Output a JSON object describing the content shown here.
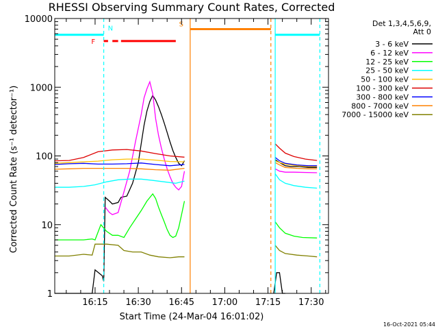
{
  "chart_data": {
    "type": "line",
    "title": "RHESSI Observing Summary Count Rates, Corrected",
    "xlabel": "Start Time (24-Mar-04 16:01:02)",
    "ylabel": "Corrected Count Rate (s⁻¹ detector⁻¹)",
    "x_ticks": [
      "16:15",
      "16:30",
      "16:45",
      "17:00",
      "17:15",
      "17:30"
    ],
    "x_tick_minutes": [
      14,
      29,
      44,
      59,
      74,
      89
    ],
    "xlim_minutes": [
      0,
      95
    ],
    "ylim": [
      1,
      10000
    ],
    "yscale": "log",
    "y_ticks": [
      "1",
      "10",
      "100",
      "1000",
      "10000"
    ],
    "y_tick_values": [
      1,
      10,
      100,
      1000,
      10000
    ],
    "grid": false,
    "legend_position": "top-right",
    "legend_header": [
      "Det 1,3,4,5,6,9,",
      "Att 0"
    ],
    "footer_stamp": "16-Oct-2021 05:44",
    "series": [
      {
        "name": "3 - 6 keV",
        "color": "#000000",
        "segments": [
          [
            [
              0,
              1
            ],
            [
              13,
              1
            ],
            [
              14,
              2.2
            ],
            [
              16.5,
              1.8
            ],
            [
              17,
              1.5
            ],
            [
              17.5,
              25
            ],
            [
              19,
              22
            ],
            [
              20,
              20
            ],
            [
              22,
              21
            ],
            [
              23,
              25
            ],
            [
              25,
              26
            ],
            [
              27,
              40
            ],
            [
              29,
              80
            ],
            [
              30,
              150
            ],
            [
              31,
              280
            ],
            [
              32,
              450
            ],
            [
              33,
              620
            ],
            [
              34,
              760
            ],
            [
              35,
              650
            ],
            [
              36,
              520
            ],
            [
              37,
              400
            ],
            [
              38,
              300
            ],
            [
              39,
              220
            ],
            [
              40,
              160
            ],
            [
              41,
              120
            ],
            [
              42,
              95
            ],
            [
              43,
              78
            ],
            [
              44,
              72
            ],
            [
              45,
              85
            ]
          ],
          [
            [
              76,
              1
            ],
            [
              77,
              2
            ],
            [
              78,
              2
            ],
            [
              79,
              1
            ],
            [
              80,
              1
            ]
          ],
          [
            [
              76.5,
              88
            ],
            [
              78,
              80
            ],
            [
              80,
              72
            ],
            [
              82,
              70
            ],
            [
              85,
              70
            ],
            [
              88,
              68
            ],
            [
              91,
              68
            ]
          ]
        ]
      },
      {
        "name": "6 - 12 keV",
        "color": "#ff00ff",
        "segments": [
          [
            [
              17.5,
              18
            ],
            [
              19,
              15
            ],
            [
              20,
              14
            ],
            [
              22,
              15
            ],
            [
              24,
              30
            ],
            [
              26,
              60
            ],
            [
              28,
              160
            ],
            [
              30,
              400
            ],
            [
              31,
              700
            ],
            [
              32,
              950
            ],
            [
              33,
              1200
            ],
            [
              34,
              800
            ],
            [
              35,
              350
            ],
            [
              36,
              200
            ],
            [
              37,
              130
            ],
            [
              38,
              90
            ],
            [
              39,
              65
            ],
            [
              40,
              50
            ],
            [
              41,
              40
            ],
            [
              42,
              35
            ],
            [
              43,
              32
            ],
            [
              44,
              36
            ],
            [
              45,
              60
            ]
          ],
          [
            [
              76.5,
              65
            ],
            [
              78,
              60
            ],
            [
              80,
              58
            ],
            [
              83,
              58
            ],
            [
              91,
              57
            ]
          ]
        ]
      },
      {
        "name": "12 - 25 keV",
        "color": "#00ff00",
        "segments": [
          [
            [
              0,
              6
            ],
            [
              10,
              6
            ],
            [
              13,
              6.2
            ],
            [
              14,
              6
            ],
            [
              16,
              10
            ],
            [
              18,
              8
            ],
            [
              20,
              7
            ],
            [
              22,
              7
            ],
            [
              24,
              6.5
            ],
            [
              26,
              9
            ],
            [
              28,
              12
            ],
            [
              30,
              16
            ],
            [
              32,
              22
            ],
            [
              34,
              28
            ],
            [
              35,
              24
            ],
            [
              36,
              18
            ],
            [
              37,
              14
            ],
            [
              38,
              11
            ],
            [
              39,
              8.5
            ],
            [
              40,
              7
            ],
            [
              41,
              6.5
            ],
            [
              42,
              6.8
            ],
            [
              43,
              9
            ],
            [
              44,
              14
            ],
            [
              45,
              22
            ]
          ],
          [
            [
              76.5,
              11
            ],
            [
              78,
              9
            ],
            [
              80,
              7.5
            ],
            [
              83,
              6.8
            ],
            [
              86,
              6.5
            ],
            [
              91,
              6.4
            ]
          ]
        ]
      },
      {
        "name": "25 - 50 keV",
        "color": "#00ffff",
        "segments": [
          [
            [
              0,
              35
            ],
            [
              5,
              35
            ],
            [
              10,
              36
            ],
            [
              14,
              38
            ],
            [
              18,
              42
            ],
            [
              22,
              45
            ],
            [
              26,
              46
            ],
            [
              30,
              46
            ],
            [
              34,
              44
            ],
            [
              38,
              42
            ],
            [
              42,
              40
            ],
            [
              45,
              43
            ]
          ],
          [
            [
              76.5,
              55
            ],
            [
              78,
              45
            ],
            [
              80,
              40
            ],
            [
              83,
              37
            ],
            [
              87,
              35
            ],
            [
              91,
              34
            ]
          ]
        ]
      },
      {
        "name": "50 - 100 keV",
        "color": "#ffbf00",
        "segments": [
          [
            [
              0,
              78
            ],
            [
              5,
              80
            ],
            [
              10,
              82
            ],
            [
              15,
              84
            ],
            [
              20,
              88
            ],
            [
              25,
              90
            ],
            [
              30,
              90
            ],
            [
              35,
              87
            ],
            [
              40,
              83
            ],
            [
              45,
              82
            ]
          ],
          [
            [
              76.5,
              85
            ],
            [
              78,
              80
            ],
            [
              80,
              76
            ],
            [
              84,
              72
            ],
            [
              88,
              70
            ],
            [
              91,
              70
            ]
          ]
        ]
      },
      {
        "name": "100 - 300 keV",
        "color": "#dd0000",
        "segments": [
          [
            [
              0,
              85
            ],
            [
              5,
              86
            ],
            [
              10,
              95
            ],
            [
              15,
              115
            ],
            [
              20,
              122
            ],
            [
              25,
              124
            ],
            [
              30,
              118
            ],
            [
              35,
              108
            ],
            [
              40,
              100
            ],
            [
              45,
              96
            ]
          ],
          [
            [
              76.5,
              150
            ],
            [
              78,
              130
            ],
            [
              80,
              110
            ],
            [
              83,
              98
            ],
            [
              87,
              90
            ],
            [
              91,
              86
            ]
          ]
        ]
      },
      {
        "name": "300 - 800 keV",
        "color": "#0000ff",
        "segments": [
          [
            [
              0,
              75
            ],
            [
              5,
              77
            ],
            [
              10,
              78
            ],
            [
              15,
              76
            ],
            [
              20,
              76
            ],
            [
              25,
              77
            ],
            [
              30,
              79
            ],
            [
              35,
              75
            ],
            [
              40,
              72
            ],
            [
              45,
              75
            ]
          ],
          [
            [
              76.5,
              95
            ],
            [
              78,
              85
            ],
            [
              80,
              78
            ],
            [
              84,
              74
            ],
            [
              88,
              72
            ],
            [
              91,
              72
            ]
          ]
        ]
      },
      {
        "name": "800 - 7000 keV",
        "color": "#ff8000",
        "segments": [
          [
            [
              0,
              64
            ],
            [
              5,
              65
            ],
            [
              10,
              66
            ],
            [
              15,
              66
            ],
            [
              20,
              66
            ],
            [
              25,
              66
            ],
            [
              30,
              65
            ],
            [
              35,
              63
            ],
            [
              40,
              62
            ],
            [
              45,
              66
            ]
          ],
          [
            [
              76.5,
              80
            ],
            [
              78,
              74
            ],
            [
              80,
              68
            ],
            [
              84,
              66
            ],
            [
              88,
              65
            ],
            [
              91,
              65
            ]
          ]
        ]
      },
      {
        "name": "7000 - 15000 keV",
        "color": "#808000",
        "segments": [
          [
            [
              0,
              3.5
            ],
            [
              5,
              3.5
            ],
            [
              10,
              3.7
            ],
            [
              13,
              3.6
            ],
            [
              14,
              5.2
            ],
            [
              18,
              5.2
            ],
            [
              22,
              5
            ],
            [
              24,
              4.2
            ],
            [
              27,
              4
            ],
            [
              30,
              4
            ],
            [
              33,
              3.6
            ],
            [
              36,
              3.4
            ],
            [
              40,
              3.3
            ],
            [
              43,
              3.4
            ],
            [
              45,
              3.4
            ]
          ],
          [
            [
              76.5,
              5
            ],
            [
              78,
              4.2
            ],
            [
              80,
              3.8
            ],
            [
              84,
              3.6
            ],
            [
              88,
              3.5
            ],
            [
              91,
              3.4
            ]
          ]
        ]
      }
    ],
    "annotations": [
      {
        "label": "N",
        "color": "#00ffff",
        "x_minutes": 17,
        "y": 5800
      },
      {
        "label": "F",
        "color": "#ff0000",
        "x_minutes": 15,
        "y": 4700
      },
      {
        "label": "S",
        "color": "#ff8000",
        "x_minutes": 46,
        "y": 7000
      }
    ],
    "state_bars": [
      {
        "label": "N",
        "color": "#00ffff",
        "y": 5800,
        "ranges": [
          [
            0,
            17
          ],
          [
            76.5,
            92
          ]
        ]
      },
      {
        "label": "F",
        "color": "#ff0000",
        "y": 4700,
        "ranges": [
          [
            17,
            18.5
          ],
          [
            20,
            22
          ],
          [
            23,
            42
          ]
        ]
      },
      {
        "label": "S",
        "color": "#ff8000",
        "y": 7000,
        "ranges": [
          [
            47,
            75
          ]
        ]
      }
    ],
    "vertical_markers": [
      {
        "x_minutes": 17,
        "color": "#00ffff",
        "style": "dashed"
      },
      {
        "x_minutes": 47,
        "color": "#ff8000",
        "style": "solid"
      },
      {
        "x_minutes": 75,
        "color": "#ff8000",
        "style": "dashed"
      },
      {
        "x_minutes": 76.5,
        "color": "#00ffff",
        "style": "solid"
      },
      {
        "x_minutes": 92,
        "color": "#00ffff",
        "style": "dashed"
      }
    ]
  }
}
